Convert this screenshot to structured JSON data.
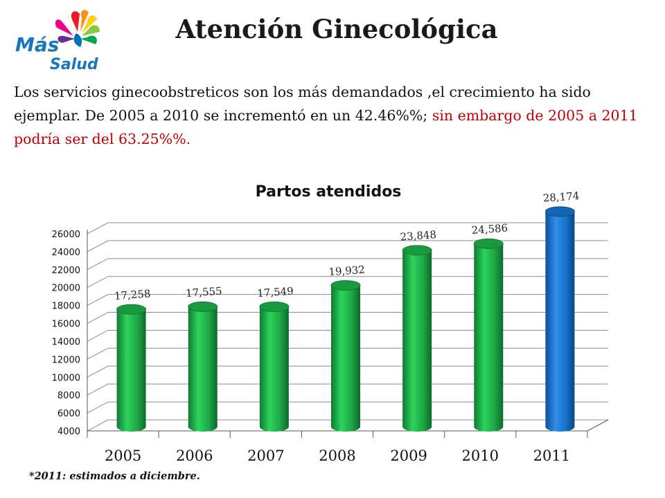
{
  "logo": {
    "line1": "Más",
    "line2": "Salud"
  },
  "header": {
    "title": "Atención Ginecológica"
  },
  "intro": {
    "text_black": "Los servicios ginecoobstreticos son los más demandados ,el crecimiento ha sido ejemplar. De 2005 a 2010 se incrementó en un 42.46%%;",
    "text_red": "sin embargo de 2005 a 2011 podría  ser del 63.25%%."
  },
  "footnote": "*2011: estimados a diciembre.",
  "colors": {
    "green_bar": "#22b24c",
    "blue_bar": "#1874cd",
    "red_text": "#c00000"
  },
  "chart_data": {
    "type": "bar",
    "title": "Partos atendidos",
    "xlabel": "",
    "ylabel": "",
    "categories": [
      "2005",
      "2006",
      "2007",
      "2008",
      "2009",
      "2010",
      "2011"
    ],
    "values": [
      17258,
      17555,
      17549,
      19932,
      23848,
      24586,
      28174
    ],
    "data_labels": [
      "17,258",
      "17,555",
      "17,549",
      "19,932",
      "23,848",
      "24,586",
      "28,174"
    ],
    "bar_colors": [
      "#22b24c",
      "#22b24c",
      "#22b24c",
      "#22b24c",
      "#22b24c",
      "#22b24c",
      "#1874cd"
    ],
    "ylim": [
      4000,
      26000
    ],
    "yticks": [
      "4000",
      "6000",
      "8000",
      "10000",
      "12000",
      "14000",
      "16000",
      "18000",
      "20000",
      "22000",
      "24000",
      "26000"
    ],
    "grid": true,
    "legend": "none"
  }
}
